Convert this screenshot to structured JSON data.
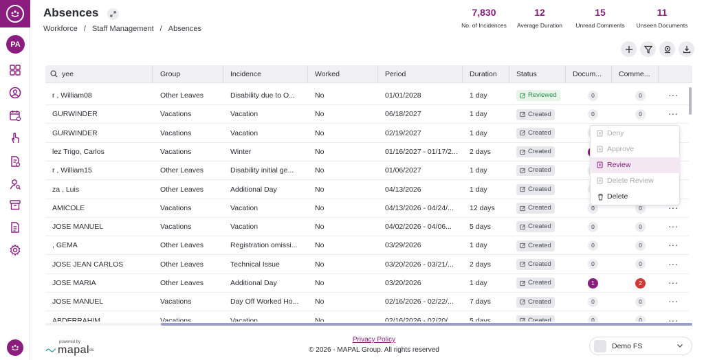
{
  "header": {
    "title": "Absences",
    "breadcrumb": [
      "Workforce",
      "/",
      "Staff Management",
      "/",
      "Absences"
    ]
  },
  "sidebar": {
    "avatar_initials": "PA",
    "icons": [
      "dashboard-icon",
      "user-circle-icon",
      "calendar-icon",
      "hand-touch-icon",
      "document-settings-icon",
      "user-search-icon",
      "archive-icon",
      "report-icon",
      "settings-icon"
    ]
  },
  "stats": [
    {
      "value": "7,830",
      "label": "No. of Incidences"
    },
    {
      "value": "12",
      "label": "Average Duration"
    },
    {
      "value": "15",
      "label": "Unread Comments"
    },
    {
      "value": "11",
      "label": "Unseen Documents"
    }
  ],
  "toolbar": [
    "add-icon",
    "filter-icon",
    "location-icon",
    "download-icon"
  ],
  "table": {
    "columns": [
      "yee",
      "Group",
      "Incidence",
      "Worked",
      "Period",
      "Duration",
      "Status",
      "Docum...",
      "Comme..."
    ],
    "rows": [
      {
        "employee": "r , William08",
        "group": "Other Leaves",
        "incidence": "Disability due to O...",
        "worked": "No",
        "period": "01/01/2028",
        "duration": "1 day",
        "status": "Reviewed",
        "docs": "0",
        "comments": "0"
      },
      {
        "employee": "GURWINDER",
        "group": "Vacations",
        "incidence": "Vacation",
        "worked": "No",
        "period": "06/18/2027",
        "duration": "1 day",
        "status": "Created",
        "docs": "0",
        "comments": "0"
      },
      {
        "employee": "GURWINDER",
        "group": "Vacations",
        "incidence": "Vacation",
        "worked": "No",
        "period": "02/19/2027",
        "duration": "1 day",
        "status": "Created",
        "docs": "0",
        "comments": ""
      },
      {
        "employee": "lez Trigo, Carlos",
        "group": "Vacations",
        "incidence": "Winter",
        "worked": "No",
        "period": "01/16/2027 - 01/17/2...",
        "duration": "2 days",
        "status": "Created",
        "docs": "1",
        "comments": ""
      },
      {
        "employee": "r , William15",
        "group": "Other Leaves",
        "incidence": "Disability initial ge...",
        "worked": "No",
        "period": "01/06/2027",
        "duration": "1 day",
        "status": "Created",
        "docs": "0",
        "comments": ""
      },
      {
        "employee": "za , Luis",
        "group": "Other Leaves",
        "incidence": "Additional Day",
        "worked": "No",
        "period": "04/13/2026",
        "duration": "1 day",
        "status": "Created",
        "docs": "0",
        "comments": ""
      },
      {
        "employee": "AMICOLE",
        "group": "Vacations",
        "incidence": "Vacation",
        "worked": "No",
        "period": "04/13/2026 - 04/24/...",
        "duration": "12 days",
        "status": "Created",
        "docs": "0",
        "comments": "0"
      },
      {
        "employee": "JOSE MANUEL",
        "group": "Vacations",
        "incidence": "Vacation",
        "worked": "No",
        "period": "04/02/2026 - 04/06...",
        "duration": "5 days",
        "status": "Created",
        "docs": "0",
        "comments": "0"
      },
      {
        "employee": ", GEMA",
        "group": "Other Leaves",
        "incidence": "Registration omissi...",
        "worked": "No",
        "period": "03/29/2026",
        "duration": "1 day",
        "status": "Created",
        "docs": "0",
        "comments": "0"
      },
      {
        "employee": "JOSE JEAN CARLOS",
        "group": "Other Leaves",
        "incidence": "Technical Issue",
        "worked": "No",
        "period": "03/20/2026 - 03/21/...",
        "duration": "2 days",
        "status": "Created",
        "docs": "0",
        "comments": "0"
      },
      {
        "employee": "JOSE MARIA",
        "group": "Other Leaves",
        "incidence": "Additional Day",
        "worked": "No",
        "period": "03/20/2026",
        "duration": "1 day",
        "status": "Created",
        "docs": "1",
        "comments": "2"
      },
      {
        "employee": "JOSE MANUEL",
        "group": "Vacations",
        "incidence": "Day Off Worked Ho...",
        "worked": "No",
        "period": "02/16/2026 - 02/22/...",
        "duration": "7 days",
        "status": "Created",
        "docs": "0",
        "comments": "0"
      },
      {
        "employee": "ABDERRAHIM",
        "group": "Vacations",
        "incidence": "Vacation",
        "worked": "No",
        "period": "02/16/2026 - 02/20/...",
        "duration": "5 days",
        "status": "Created",
        "docs": "0",
        "comments": "0"
      }
    ],
    "more_label": "···"
  },
  "context_menu": {
    "items": [
      {
        "label": "Deny",
        "state": "disabled",
        "icon": "deny-icon"
      },
      {
        "label": "Approve",
        "state": "disabled",
        "icon": "approve-icon"
      },
      {
        "label": "Review",
        "state": "active",
        "icon": "review-icon"
      },
      {
        "label": "Delete Review",
        "state": "disabled",
        "icon": "delete-review-icon"
      },
      {
        "label": "Delete",
        "state": "enabled",
        "icon": "trash-icon"
      }
    ]
  },
  "footer": {
    "powered_by": "powered by",
    "brand": "mapal",
    "brand_suffix": "os",
    "privacy": "Privacy Policy",
    "copyright": "© 2026 - MAPAL Group. All rights reserved",
    "company": "Demo FS"
  },
  "colors": {
    "accent": "#8a1d7e",
    "reviewed": "#2f8a47",
    "danger": "#d23b35"
  }
}
